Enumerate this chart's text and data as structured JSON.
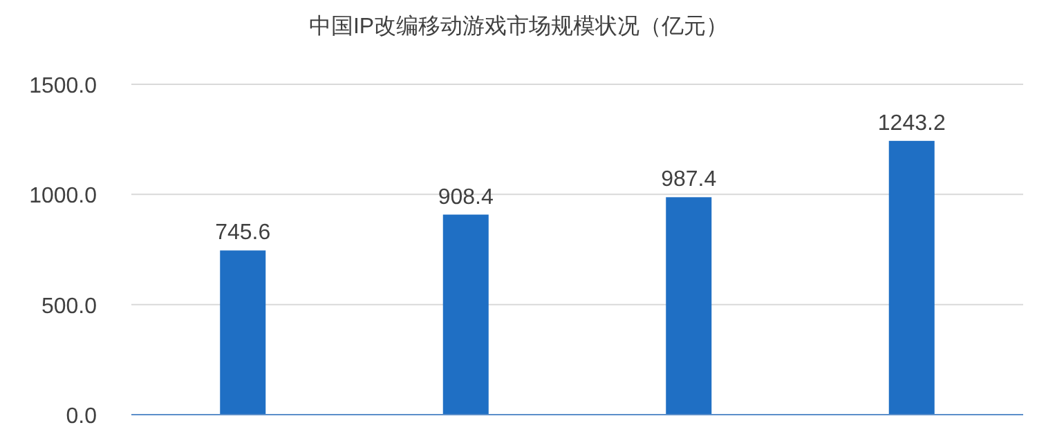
{
  "chart_data": {
    "type": "bar",
    "title": "中国IP改编移动游戏市场规模状况（亿元）",
    "categories": [
      null,
      null,
      null,
      null
    ],
    "values": [
      745.6,
      908.4,
      987.4,
      1243.2
    ],
    "color": "#1f6fc4",
    "ylim": [
      0,
      1500
    ],
    "yticks": [
      {
        "value": 0,
        "label": "0.0"
      },
      {
        "value": 500,
        "label": "500.0"
      },
      {
        "value": 1000,
        "label": "1000.0"
      },
      {
        "value": 1500,
        "label": "1500.0"
      }
    ],
    "grid": "y",
    "data_labels": true
  }
}
